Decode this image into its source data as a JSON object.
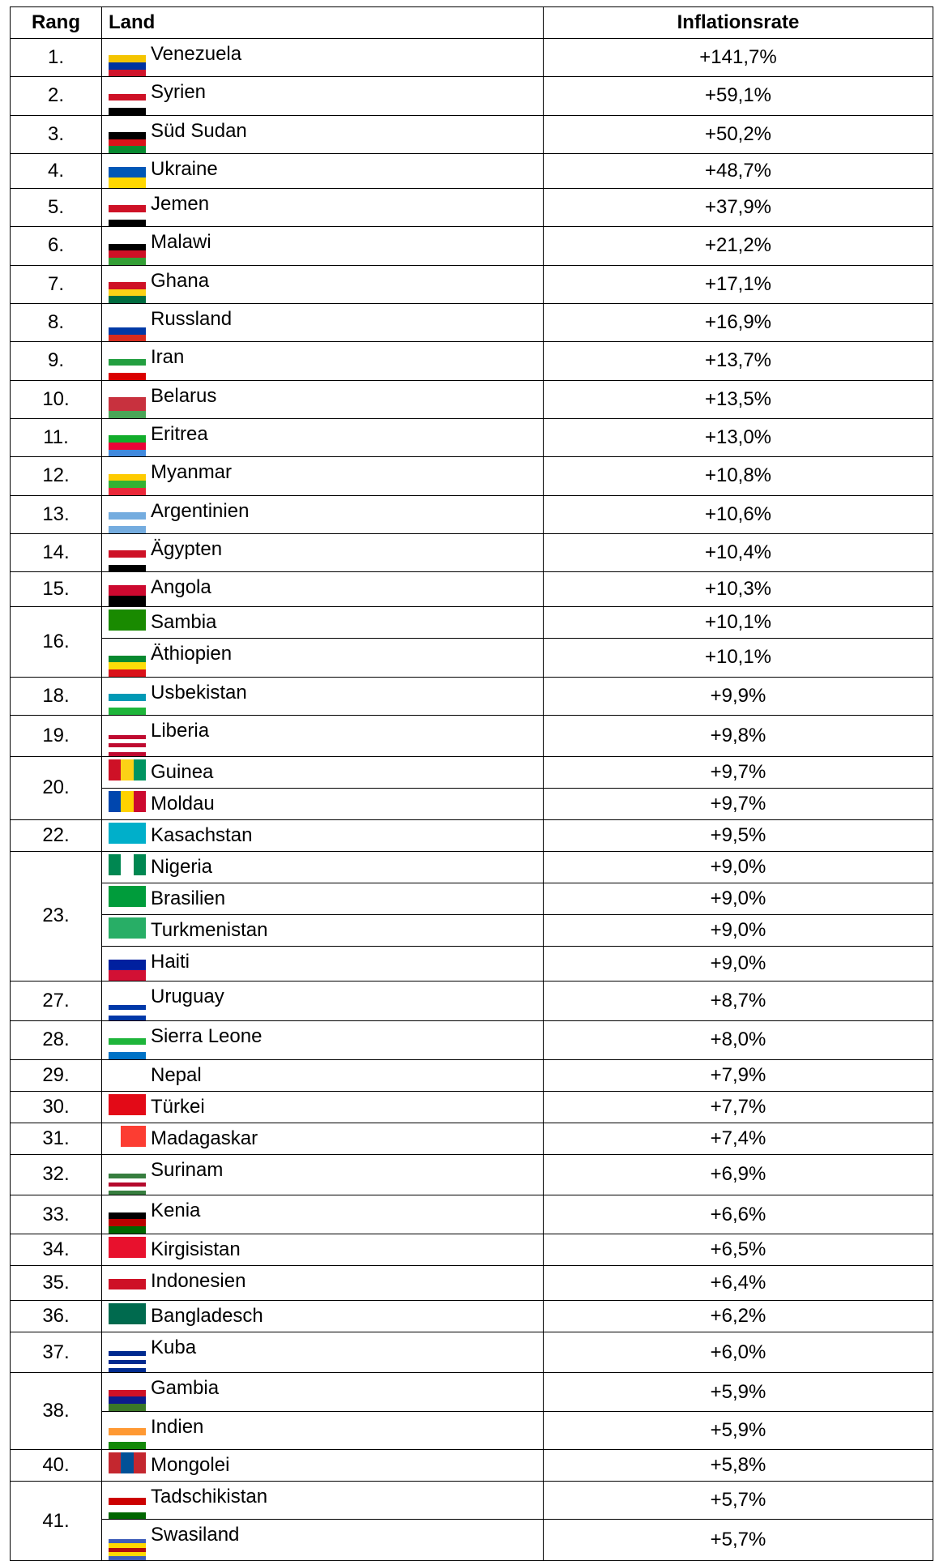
{
  "table": {
    "header": [
      "Rang",
      "Land",
      "Inflationsrate"
    ],
    "groups": [
      {
        "rank": "1.",
        "rows": [
          {
            "country": "Venezuela",
            "rate": "+141,7%"
          }
        ]
      },
      {
        "rank": "2.",
        "rows": [
          {
            "country": "Syrien",
            "rate": "+59,1%"
          }
        ]
      },
      {
        "rank": "3.",
        "rows": [
          {
            "country": "Süd Sudan",
            "rate": "+50,2%"
          }
        ]
      },
      {
        "rank": "4.",
        "rows": [
          {
            "country": "Ukraine",
            "rate": "+48,7%"
          }
        ]
      },
      {
        "rank": "5.",
        "rows": [
          {
            "country": "Jemen",
            "rate": "+37,9%"
          }
        ]
      },
      {
        "rank": "6.",
        "rows": [
          {
            "country": "Malawi",
            "rate": "+21,2%"
          }
        ]
      },
      {
        "rank": "7.",
        "rows": [
          {
            "country": "Ghana",
            "rate": "+17,1%"
          }
        ]
      },
      {
        "rank": "8.",
        "rows": [
          {
            "country": "Russland",
            "rate": "+16,9%"
          }
        ]
      },
      {
        "rank": "9.",
        "rows": [
          {
            "country": "Iran",
            "rate": "+13,7%"
          }
        ]
      },
      {
        "rank": "10.",
        "rows": [
          {
            "country": "Belarus",
            "rate": "+13,5%"
          }
        ]
      },
      {
        "rank": "11.",
        "rows": [
          {
            "country": "Eritrea",
            "rate": "+13,0%"
          }
        ]
      },
      {
        "rank": "12.",
        "rows": [
          {
            "country": "Myanmar",
            "rate": "+10,8%"
          }
        ]
      },
      {
        "rank": "13.",
        "rows": [
          {
            "country": "Argentinien",
            "rate": "+10,6%"
          }
        ]
      },
      {
        "rank": "14.",
        "rows": [
          {
            "country": "Ägypten",
            "rate": "+10,4%"
          }
        ]
      },
      {
        "rank": "15.",
        "rows": [
          {
            "country": "Angola",
            "rate": "+10,3%"
          }
        ]
      },
      {
        "rank": "16.",
        "rows": [
          {
            "country": "Sambia",
            "rate": "+10,1%"
          },
          {
            "country": "Äthiopien",
            "rate": "+10,1%"
          }
        ]
      },
      {
        "rank": "18.",
        "rows": [
          {
            "country": "Usbekistan",
            "rate": "+9,9%"
          }
        ]
      },
      {
        "rank": "19.",
        "rows": [
          {
            "country": "Liberia",
            "rate": "+9,8%"
          }
        ]
      },
      {
        "rank": "20.",
        "rows": [
          {
            "country": "Guinea",
            "rate": "+9,7%"
          },
          {
            "country": "Moldau",
            "rate": "+9,7%"
          }
        ]
      },
      {
        "rank": "22.",
        "rows": [
          {
            "country": "Kasachstan",
            "rate": "+9,5%"
          }
        ]
      },
      {
        "rank": "23.",
        "rows": [
          {
            "country": "Nigeria",
            "rate": "+9,0%"
          },
          {
            "country": "Brasilien",
            "rate": "+9,0%"
          },
          {
            "country": "Turkmenistan",
            "rate": "+9,0%"
          },
          {
            "country": "Haiti",
            "rate": "+9,0%"
          }
        ]
      },
      {
        "rank": "27.",
        "rows": [
          {
            "country": "Uruguay",
            "rate": "+8,7%"
          }
        ]
      },
      {
        "rank": "28.",
        "rows": [
          {
            "country": "Sierra Leone",
            "rate": "+8,0%"
          }
        ]
      },
      {
        "rank": "29.",
        "rows": [
          {
            "country": "Nepal",
            "rate": "+7,9%"
          }
        ]
      },
      {
        "rank": "30.",
        "rows": [
          {
            "country": "Türkei",
            "rate": "+7,7%"
          }
        ]
      },
      {
        "rank": "31.",
        "rows": [
          {
            "country": "Madagaskar",
            "rate": "+7,4%"
          }
        ]
      },
      {
        "rank": "32.",
        "rows": [
          {
            "country": "Surinam",
            "rate": "+6,9%"
          }
        ]
      },
      {
        "rank": "33.",
        "rows": [
          {
            "country": "Kenia",
            "rate": "+6,6%"
          }
        ]
      },
      {
        "rank": "34.",
        "rows": [
          {
            "country": "Kirgisistan",
            "rate": "+6,5%"
          }
        ]
      },
      {
        "rank": "35.",
        "rows": [
          {
            "country": "Indonesien",
            "rate": "+6,4%"
          }
        ]
      },
      {
        "rank": "36.",
        "rows": [
          {
            "country": "Bangladesch",
            "rate": "+6,2%"
          }
        ]
      },
      {
        "rank": "37.",
        "rows": [
          {
            "country": "Kuba",
            "rate": "+6,0%"
          }
        ]
      },
      {
        "rank": "38.",
        "rows": [
          {
            "country": "Gambia",
            "rate": "+5,9%"
          },
          {
            "country": "Indien",
            "rate": "+5,9%"
          }
        ]
      },
      {
        "rank": "40.",
        "rows": [
          {
            "country": "Mongolei",
            "rate": "+5,8%"
          }
        ]
      },
      {
        "rank": "41.",
        "rows": [
          {
            "country": "Tadschikistan",
            "rate": "+5,7%"
          },
          {
            "country": "Swasiland",
            "rate": "+5,7%"
          }
        ]
      }
    ]
  }
}
